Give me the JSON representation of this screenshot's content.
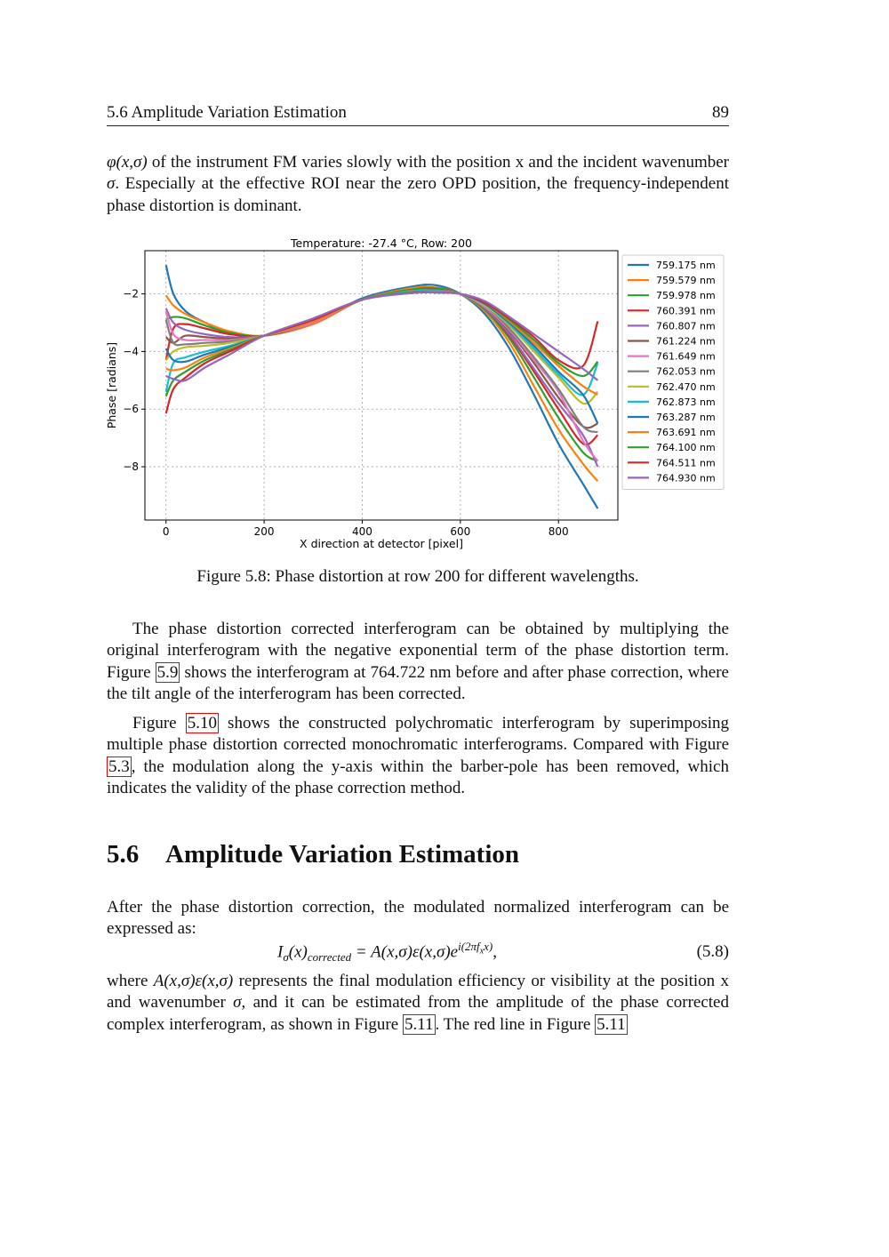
{
  "header": {
    "section": "5.6 Amplitude Variation Estimation",
    "page": "89"
  },
  "paragraphs": [
    [
      {
        "m": "φ(x,σ)"
      },
      {
        "t": " of the instrument FM varies slowly with the position x and the incident wavenumber "
      },
      {
        "m": "σ"
      },
      {
        "t": ".  Especially at the effective ROI near the zero OPD position, the frequency-independent phase distortion is dominant."
      }
    ],
    [
      {
        "t": "The phase distortion corrected interferogram can be obtained by multiplying the original interferogram with the negative exponential term of the phase distortion term. Figure "
      },
      {
        "r": "5.9"
      },
      {
        "t": " shows the interferogram at 764.722 nm before and after phase correction, where the tilt angle of the interferogram has been corrected."
      }
    ],
    [
      {
        "t": "Figure "
      },
      {
        "r": "5.10"
      },
      {
        "t": " shows the constructed polychromatic interferogram by superimposing multiple phase distortion corrected monochromatic interferograms. Compared with Fig­ure "
      },
      {
        "r": "5.3"
      },
      {
        "t": ", the modulation along the y-axis within the barber-pole has been removed, which indicates the validity of the phase correction method."
      }
    ],
    [
      {
        "t": "After the phase distortion correction, the modulated normalized interferogram can be expressed as:"
      }
    ],
    [
      {
        "t": "where "
      },
      {
        "m": "A(x,σ)ε(x,σ)"
      },
      {
        "t": " represents the final modulation efficiency or visibility at the position x and wavenumber "
      },
      {
        "m": "σ"
      },
      {
        "t": ", and it can be estimated from the amplitude of the phase corrected complex interferogram, as shown in Figure "
      },
      {
        "r": "5.11"
      },
      {
        "t": ".  The red line in Figure "
      },
      {
        "r": "5.11"
      }
    ]
  ],
  "caption": "Figure 5.8: Phase distortion at row 200 for different wavelengths.",
  "section_heading": {
    "number": "5.6",
    "title": "Amplitude Variation Estimation"
  },
  "equation": {
    "lhs": "I",
    "lhs_sub": "σ",
    "lhs_arg": "(x)",
    "lhs_sub2": "corrected",
    "rhs": " = A(x,σ)ε(x,σ)e",
    "rhs_sup": "i(2πf",
    "rhs_sup_sub": "x",
    "rhs_sup_end": "x)",
    "tail": ",",
    "number": "(5.8)"
  },
  "chart_data": {
    "type": "line",
    "title": "Temperature: -27.4 °C, Row: 200",
    "xlabel": "X direction at detector [pixel]",
    "ylabel": "Phase [radians]",
    "xlim": [
      -43,
      921
    ],
    "ylim": [
      -9.85,
      -0.5
    ],
    "xticks": [
      0,
      200,
      400,
      600,
      800
    ],
    "yticks": [
      -2,
      -4,
      -6,
      -8
    ],
    "grid": true,
    "legend_position": "outside-right",
    "x": [
      0,
      15,
      40,
      80,
      130,
      200,
      300,
      400,
      500,
      550,
      600,
      650,
      700,
      750,
      800,
      850,
      880
    ],
    "series": [
      {
        "name": "759.175 nm",
        "color": "#1f77b4",
        "values": [
          -1.0,
          -2.0,
          -2.6,
          -3.0,
          -3.35,
          -3.45,
          -3.0,
          -2.15,
          -1.75,
          -1.7,
          -2.0,
          -2.7,
          -3.9,
          -5.5,
          -7.2,
          -8.6,
          -9.45
        ]
      },
      {
        "name": "759.579 nm",
        "color": "#ff7f0e",
        "values": [
          -2.05,
          -2.4,
          -2.7,
          -3.0,
          -3.3,
          -3.45,
          -3.05,
          -2.2,
          -1.8,
          -1.78,
          -2.0,
          -2.6,
          -3.7,
          -5.2,
          -6.7,
          -7.9,
          -8.5
        ]
      },
      {
        "name": "759.978 nm",
        "color": "#2ca02c",
        "values": [
          -2.9,
          -2.8,
          -2.85,
          -3.1,
          -3.35,
          -3.45,
          -3.0,
          -2.2,
          -1.85,
          -1.8,
          -2.0,
          -2.55,
          -3.55,
          -4.9,
          -6.3,
          -7.5,
          -7.8
        ]
      },
      {
        "name": "760.391 nm",
        "color": "#d62728",
        "values": [
          -4.3,
          -3.2,
          -3.05,
          -3.2,
          -3.4,
          -3.45,
          -3.0,
          -2.2,
          -1.9,
          -1.85,
          -2.0,
          -2.5,
          -3.45,
          -4.7,
          -6.0,
          -7.2,
          -6.9
        ]
      },
      {
        "name": "760.807 nm",
        "color": "#9467bd",
        "values": [
          -2.5,
          -3.0,
          -3.25,
          -3.4,
          -3.5,
          -3.45,
          -3.0,
          -2.2,
          -1.9,
          -1.85,
          -2.0,
          -2.5,
          -3.4,
          -4.6,
          -5.8,
          -6.9,
          -8.0
        ]
      },
      {
        "name": "761.224 nm",
        "color": "#8c564b",
        "values": [
          -3.5,
          -3.7,
          -3.45,
          -3.5,
          -3.55,
          -3.45,
          -3.0,
          -2.2,
          -1.9,
          -1.85,
          -2.0,
          -2.45,
          -3.3,
          -4.4,
          -5.6,
          -6.6,
          -6.5
        ]
      },
      {
        "name": "761.649 nm",
        "color": "#e377c2",
        "values": [
          -2.6,
          -3.4,
          -3.6,
          -3.6,
          -3.6,
          -3.45,
          -3.0,
          -2.2,
          -1.9,
          -1.88,
          -2.0,
          -2.45,
          -3.25,
          -4.3,
          -5.4,
          -7.1,
          -7.8
        ]
      },
      {
        "name": "762.053 nm",
        "color": "#7f7f7f",
        "values": [
          -2.9,
          -3.7,
          -3.75,
          -3.7,
          -3.65,
          -3.45,
          -2.95,
          -2.2,
          -1.9,
          -1.88,
          -2.0,
          -2.4,
          -3.2,
          -4.2,
          -5.3,
          -6.6,
          -6.8
        ]
      },
      {
        "name": "762.470 nm",
        "color": "#bcbd22",
        "values": [
          -4.3,
          -4.0,
          -3.85,
          -3.8,
          -3.7,
          -3.45,
          -2.95,
          -2.2,
          -1.92,
          -1.9,
          -2.0,
          -2.4,
          -3.1,
          -4.0,
          -4.9,
          -5.8,
          -5.4
        ]
      },
      {
        "name": "762.873 nm",
        "color": "#17becf",
        "values": [
          -5.4,
          -4.4,
          -4.2,
          -4.0,
          -3.8,
          -3.45,
          -2.95,
          -2.2,
          -1.92,
          -1.9,
          -2.0,
          -2.35,
          -3.05,
          -3.9,
          -4.8,
          -5.5,
          -4.4
        ]
      },
      {
        "name": "763.287 nm",
        "color": "#1f77b4",
        "values": [
          -3.9,
          -4.3,
          -4.35,
          -4.1,
          -3.85,
          -3.45,
          -2.95,
          -2.2,
          -1.95,
          -1.92,
          -2.0,
          -2.35,
          -3.0,
          -3.8,
          -4.7,
          -5.5,
          -6.5
        ]
      },
      {
        "name": "763.691 nm",
        "color": "#ff7f0e",
        "values": [
          -4.6,
          -4.65,
          -4.55,
          -4.2,
          -3.9,
          -3.45,
          -2.95,
          -2.2,
          -1.95,
          -1.92,
          -2.0,
          -2.3,
          -2.95,
          -3.7,
          -4.5,
          -5.2,
          -5.5
        ]
      },
      {
        "name": "764.100 nm",
        "color": "#2ca02c",
        "values": [
          -5.55,
          -5.0,
          -4.7,
          -4.3,
          -3.95,
          -3.45,
          -2.9,
          -2.2,
          -1.95,
          -1.95,
          -2.0,
          -2.3,
          -2.9,
          -3.6,
          -4.4,
          -4.85,
          -4.35
        ]
      },
      {
        "name": "764.511 nm",
        "color": "#d62728",
        "values": [
          -6.15,
          -5.3,
          -4.9,
          -4.4,
          -4.0,
          -3.45,
          -2.9,
          -2.2,
          -1.97,
          -1.95,
          -2.0,
          -2.3,
          -2.85,
          -3.5,
          -4.3,
          -4.5,
          -2.95
        ]
      },
      {
        "name": "764.930 nm",
        "color": "#9467bd",
        "values": [
          -4.85,
          -4.95,
          -5.0,
          -4.55,
          -4.1,
          -3.45,
          -2.85,
          -2.2,
          -1.97,
          -1.95,
          -2.0,
          -2.25,
          -2.8,
          -3.4,
          -4.0,
          -4.6,
          -5.0
        ]
      }
    ]
  }
}
